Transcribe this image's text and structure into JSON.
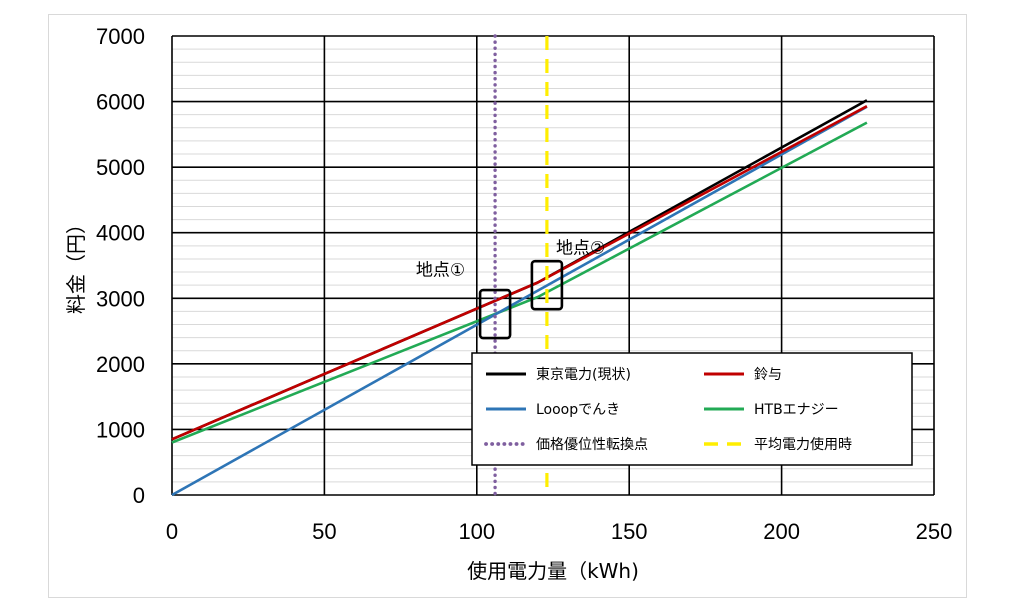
{
  "chart_data": {
    "type": "line",
    "title": "",
    "xlabel": "使用電力量（kWh)",
    "ylabel": "料金（円）",
    "xlim": [
      0,
      250
    ],
    "ylim": [
      0,
      7000
    ],
    "x_ticks": [
      0,
      50,
      100,
      150,
      200,
      250
    ],
    "y_ticks": [
      0,
      1000,
      2000,
      3000,
      4000,
      5000,
      6000,
      7000
    ],
    "x_tick_labels": [
      "0",
      "50",
      "100",
      "150",
      "200",
      "250"
    ],
    "y_tick_labels": [
      "0",
      "1000",
      "2000",
      "3000",
      "4000",
      "5000",
      "6000",
      "7000"
    ],
    "grid": true,
    "legend_position": "bottom-right",
    "series": [
      {
        "name": "東京電力(現状)",
        "color": "#000000",
        "style": "solid",
        "x": [
          0,
          120,
          228
        ],
        "y": [
          850,
          3240,
          6020
        ]
      },
      {
        "name": "鈴与",
        "color": "#c00000",
        "style": "solid",
        "x": [
          0,
          120,
          228
        ],
        "y": [
          850,
          3240,
          5930
        ]
      },
      {
        "name": "Looopでんき",
        "color": "#2e75b6",
        "style": "solid",
        "x": [
          0,
          228
        ],
        "y": [
          0,
          5920
        ]
      },
      {
        "name": "HTBエナジー",
        "color": "#22aa55",
        "style": "solid",
        "x": [
          0,
          120,
          228
        ],
        "y": [
          800,
          3020,
          5680
        ]
      },
      {
        "name": "平均電力使用時",
        "color": "#ffee00",
        "style": "dashed",
        "vertical_x": 123
      },
      {
        "name": "価格優位性転換点",
        "color": "#7f5f9f",
        "style": "dotted",
        "vertical_x": 106
      }
    ],
    "annotations": [
      {
        "label": "地点①",
        "x": 106,
        "y": 2760,
        "text_x": 80,
        "text_y": 3350
      },
      {
        "label": "地点②",
        "x": 123,
        "y": 3200,
        "text_x": 126,
        "text_y": 3680
      }
    ]
  }
}
